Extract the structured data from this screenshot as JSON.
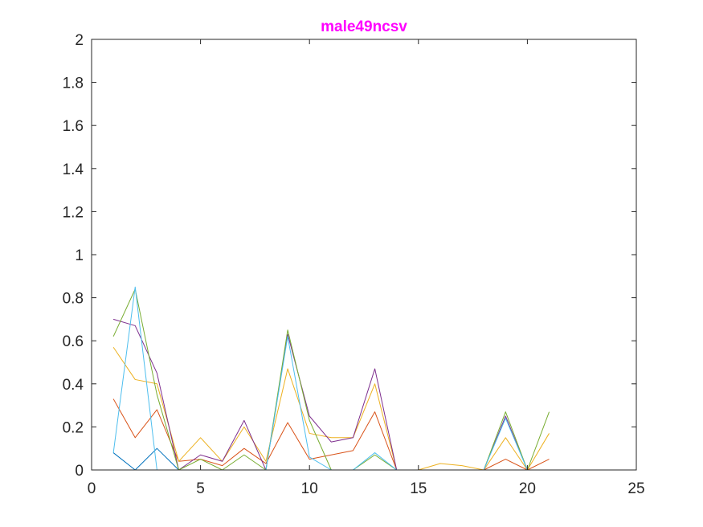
{
  "chart_data": {
    "type": "line",
    "title": "male49ncsv",
    "xlabel": "",
    "ylabel": "",
    "xlim": [
      0,
      25
    ],
    "ylim": [
      0,
      2
    ],
    "xticks": [
      0,
      5,
      10,
      15,
      20,
      25
    ],
    "yticks": [
      0,
      0.2,
      0.4,
      0.6,
      0.8,
      1,
      1.2,
      1.4,
      1.6,
      1.8,
      2
    ],
    "grid": false,
    "x": [
      1,
      2,
      3,
      4,
      5,
      6,
      7,
      8,
      9,
      10,
      11,
      12,
      13,
      14,
      15,
      16,
      17,
      18,
      19,
      20,
      21
    ],
    "series": [
      {
        "color": "#0072BD",
        "values": [
          0.08,
          0.0,
          0.1,
          0.0,
          0.0,
          0.0,
          0.0,
          0.0,
          0.0,
          0.0,
          0.0,
          0.0,
          0.0,
          0.0,
          0.0,
          0.0,
          0.0,
          0.0,
          0.0,
          0.0,
          0.0
        ]
      },
      {
        "color": "#D95319",
        "values": [
          0.33,
          0.15,
          0.28,
          0.04,
          0.05,
          0.02,
          0.1,
          0.03,
          0.22,
          0.05,
          0.07,
          0.09,
          0.27,
          0.0,
          0.0,
          0.0,
          0.0,
          0.0,
          0.05,
          0.0,
          0.05
        ]
      },
      {
        "color": "#EDB120",
        "values": [
          0.57,
          0.42,
          0.4,
          0.04,
          0.15,
          0.04,
          0.2,
          0.04,
          0.47,
          0.17,
          0.15,
          0.15,
          0.4,
          0.0,
          0.0,
          0.03,
          0.02,
          0.0,
          0.15,
          0.0,
          0.17
        ]
      },
      {
        "color": "#7E2F8E",
        "values": [
          0.7,
          0.67,
          0.45,
          0.0,
          0.07,
          0.04,
          0.23,
          0.0,
          0.63,
          0.25,
          0.13,
          0.15,
          0.47,
          0.0,
          0.0,
          0.0,
          0.0,
          0.0,
          0.25,
          0.0,
          0.0
        ]
      },
      {
        "color": "#77AC30",
        "values": [
          0.62,
          0.84,
          0.35,
          0.0,
          0.05,
          0.0,
          0.07,
          0.0,
          0.65,
          0.23,
          0.0,
          0.0,
          0.07,
          0.0,
          0.0,
          0.0,
          0.0,
          0.0,
          0.27,
          0.0,
          0.27
        ]
      },
      {
        "color": "#4DBEEE",
        "values": [
          0.08,
          0.85,
          0.0,
          0.0,
          0.0,
          0.0,
          0.0,
          0.0,
          0.62,
          0.06,
          0.0,
          0.0,
          0.08,
          0.0,
          0.0,
          0.0,
          0.0,
          0.0,
          0.24,
          0.0,
          0.0
        ]
      }
    ]
  }
}
